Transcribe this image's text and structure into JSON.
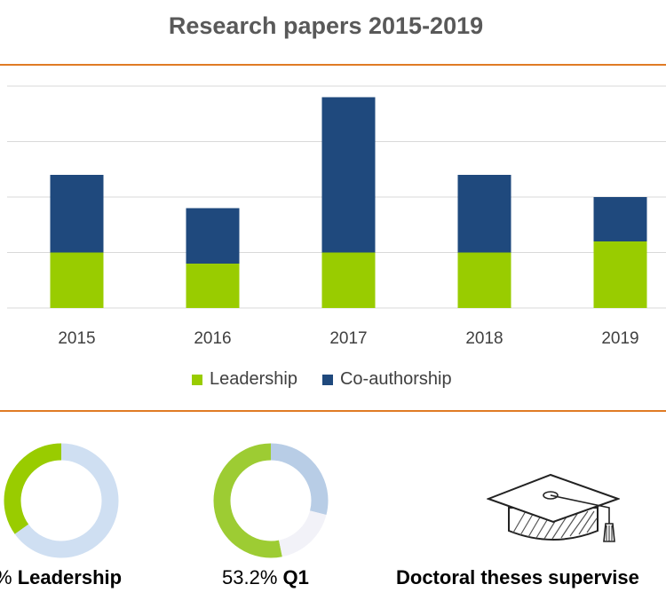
{
  "chart_data": {
    "type": "bar",
    "stacked": true,
    "title": "Research papers 2015-2019",
    "categories": [
      "2015",
      "2016",
      "2017",
      "2018",
      "2019"
    ],
    "series": [
      {
        "name": "Leadership",
        "values": [
          5,
          4,
          5,
          5,
          6
        ],
        "color": "#99cc00"
      },
      {
        "name": "Co-authorship",
        "values": [
          7,
          5,
          14,
          7,
          4
        ],
        "color": "#1f497d"
      }
    ],
    "ylim": [
      0,
      20
    ],
    "grid": true,
    "legend": "bottom"
  },
  "stats": {
    "leadership": {
      "value_text": "%",
      "label": "Leadership",
      "fraction": 0.35,
      "fill_color": "#99cc00",
      "rest_color": "#cfdff2"
    },
    "q1": {
      "value_text": "53.2%",
      "label": "Q1",
      "fraction": 0.532,
      "segments": [
        {
          "value": 0.532,
          "color": "#9dcc33"
        },
        {
          "value": 0.29,
          "color": "#b8cde6"
        },
        {
          "value": 0.178,
          "color": "#f2f2f8"
        }
      ]
    },
    "theses": {
      "label": "Doctoral theses supervise",
      "icon": "graduation-cap-icon"
    }
  }
}
